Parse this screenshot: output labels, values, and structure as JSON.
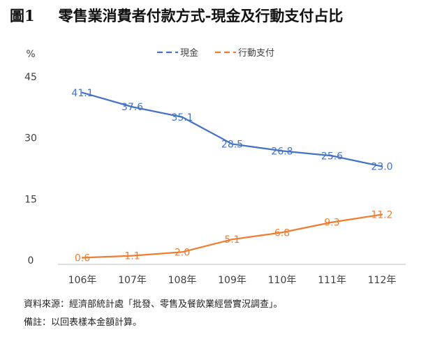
{
  "figure": {
    "label": "圖1",
    "title": "零售業消費者付款方式-現金及行動支付占比"
  },
  "notes": {
    "source": "資料來源：經濟部統計處「批發、零售及餐飲業經營實況調查」。",
    "remark": "備註：以回表樣本金額計算。"
  },
  "chart_data": {
    "type": "line",
    "title": "零售業消費者付款方式-現金及行動支付占比",
    "ylabel": "%",
    "xlabel": "",
    "categories": [
      "106年",
      "107年",
      "108年",
      "109年",
      "110年",
      "111年",
      "112年"
    ],
    "ylim": [
      0,
      45
    ],
    "yticks": [
      0,
      15,
      30,
      45
    ],
    "grid": false,
    "legend_position": "top-center",
    "series": [
      {
        "name": "現金",
        "color": "#4472c4",
        "values": [
          41.1,
          37.6,
          35.1,
          28.5,
          26.8,
          25.6,
          23.0
        ],
        "labels": [
          "41.1",
          "37.6",
          "35.1",
          "28.5",
          "26.8",
          "25.6",
          "23.0"
        ]
      },
      {
        "name": "行動支付",
        "color": "#ed7d31",
        "values": [
          0.6,
          1.1,
          2.0,
          5.1,
          6.8,
          9.3,
          11.2
        ],
        "labels": [
          "0.6",
          "1.1",
          "2.0",
          "5.1",
          "6.8",
          "9.3",
          "11.2"
        ]
      }
    ]
  }
}
